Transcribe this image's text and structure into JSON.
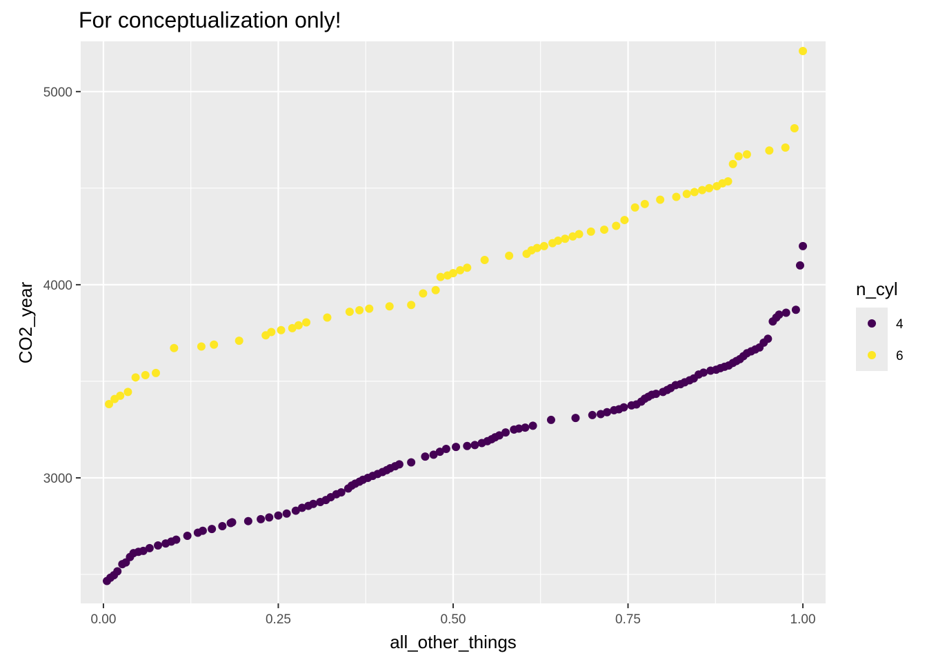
{
  "chart_data": {
    "type": "scatter",
    "title": "For conceptualization only!",
    "xlabel": "all_other_things",
    "ylabel": "CO2_year",
    "xlim": [
      -0.0325,
      1.0325
    ],
    "ylim": [
      2350,
      5260
    ],
    "x_ticks": [
      0.0,
      0.25,
      0.5,
      0.75,
      1.0
    ],
    "x_tick_labels": [
      "0.00",
      "0.25",
      "0.50",
      "0.75",
      "1.00"
    ],
    "y_ticks": [
      3000,
      4000,
      5000
    ],
    "y_tick_labels": [
      "3000",
      "4000",
      "5000"
    ],
    "grid": true,
    "legend": {
      "title": "n_cyl",
      "position": "right"
    },
    "series": [
      {
        "name": "4",
        "color": "#440154",
        "points": [
          [
            0.005,
            2466
          ],
          [
            0.01,
            2483
          ],
          [
            0.015,
            2496
          ],
          [
            0.02,
            2516
          ],
          [
            0.027,
            2553
          ],
          [
            0.032,
            2562
          ],
          [
            0.038,
            2590
          ],
          [
            0.043,
            2610
          ],
          [
            0.05,
            2617
          ],
          [
            0.057,
            2622
          ],
          [
            0.066,
            2636
          ],
          [
            0.078,
            2650
          ],
          [
            0.089,
            2660
          ],
          [
            0.097,
            2670
          ],
          [
            0.104,
            2680
          ],
          [
            0.12,
            2700
          ],
          [
            0.135,
            2716
          ],
          [
            0.142,
            2726
          ],
          [
            0.155,
            2735
          ],
          [
            0.17,
            2750
          ],
          [
            0.182,
            2766
          ],
          [
            0.184,
            2770
          ],
          [
            0.207,
            2776
          ],
          [
            0.225,
            2786
          ],
          [
            0.237,
            2795
          ],
          [
            0.25,
            2805
          ],
          [
            0.262,
            2815
          ],
          [
            0.275,
            2830
          ],
          [
            0.284,
            2845
          ],
          [
            0.293,
            2855
          ],
          [
            0.3,
            2865
          ],
          [
            0.31,
            2875
          ],
          [
            0.318,
            2885
          ],
          [
            0.325,
            2900
          ],
          [
            0.333,
            2915
          ],
          [
            0.34,
            2925
          ],
          [
            0.35,
            2945
          ],
          [
            0.355,
            2960
          ],
          [
            0.36,
            2970
          ],
          [
            0.366,
            2980
          ],
          [
            0.371,
            2990
          ],
          [
            0.378,
            3000
          ],
          [
            0.385,
            3010
          ],
          [
            0.392,
            3020
          ],
          [
            0.399,
            3030
          ],
          [
            0.405,
            3040
          ],
          [
            0.41,
            3050
          ],
          [
            0.417,
            3060
          ],
          [
            0.423,
            3070
          ],
          [
            0.44,
            3080
          ],
          [
            0.46,
            3110
          ],
          [
            0.472,
            3120
          ],
          [
            0.481,
            3135
          ],
          [
            0.49,
            3150
          ],
          [
            0.504,
            3160
          ],
          [
            0.52,
            3165
          ],
          [
            0.531,
            3170
          ],
          [
            0.541,
            3180
          ],
          [
            0.549,
            3190
          ],
          [
            0.555,
            3200
          ],
          [
            0.56,
            3210
          ],
          [
            0.566,
            3220
          ],
          [
            0.575,
            3235
          ],
          [
            0.587,
            3250
          ],
          [
            0.594,
            3255
          ],
          [
            0.603,
            3260
          ],
          [
            0.614,
            3270
          ],
          [
            0.64,
            3300
          ],
          [
            0.675,
            3310
          ],
          [
            0.699,
            3325
          ],
          [
            0.711,
            3330
          ],
          [
            0.72,
            3340
          ],
          [
            0.73,
            3350
          ],
          [
            0.737,
            3355
          ],
          [
            0.744,
            3365
          ],
          [
            0.755,
            3375
          ],
          [
            0.762,
            3380
          ],
          [
            0.769,
            3395
          ],
          [
            0.774,
            3410
          ],
          [
            0.779,
            3420
          ],
          [
            0.784,
            3430
          ],
          [
            0.79,
            3435
          ],
          [
            0.8,
            3445
          ],
          [
            0.806,
            3455
          ],
          [
            0.811,
            3465
          ],
          [
            0.818,
            3480
          ],
          [
            0.825,
            3485
          ],
          [
            0.831,
            3495
          ],
          [
            0.838,
            3505
          ],
          [
            0.844,
            3515
          ],
          [
            0.851,
            3535
          ],
          [
            0.858,
            3545
          ],
          [
            0.868,
            3555
          ],
          [
            0.876,
            3560
          ],
          [
            0.882,
            3568
          ],
          [
            0.888,
            3575
          ],
          [
            0.894,
            3582
          ],
          [
            0.9,
            3595
          ],
          [
            0.905,
            3605
          ],
          [
            0.91,
            3615
          ],
          [
            0.915,
            3630
          ],
          [
            0.92,
            3645
          ],
          [
            0.926,
            3655
          ],
          [
            0.932,
            3665
          ],
          [
            0.938,
            3675
          ],
          [
            0.944,
            3700
          ],
          [
            0.95,
            3720
          ],
          [
            0.957,
            3810
          ],
          [
            0.962,
            3830
          ],
          [
            0.966,
            3845
          ],
          [
            0.976,
            3855
          ],
          [
            0.99,
            3870
          ],
          [
            0.996,
            4100
          ],
          [
            1.0,
            4200
          ]
        ]
      },
      {
        "name": "6",
        "color": "#FDE725",
        "points": [
          [
            0.008,
            3382
          ],
          [
            0.016,
            3408
          ],
          [
            0.024,
            3425
          ],
          [
            0.035,
            3445
          ],
          [
            0.046,
            3520
          ],
          [
            0.06,
            3532
          ],
          [
            0.075,
            3543
          ],
          [
            0.101,
            3672
          ],
          [
            0.14,
            3680
          ],
          [
            0.158,
            3690
          ],
          [
            0.194,
            3710
          ],
          [
            0.232,
            3738
          ],
          [
            0.24,
            3755
          ],
          [
            0.254,
            3765
          ],
          [
            0.27,
            3775
          ],
          [
            0.279,
            3790
          ],
          [
            0.29,
            3805
          ],
          [
            0.32,
            3830
          ],
          [
            0.352,
            3860
          ],
          [
            0.366,
            3868
          ],
          [
            0.38,
            3876
          ],
          [
            0.409,
            3888
          ],
          [
            0.44,
            3895
          ],
          [
            0.457,
            3955
          ],
          [
            0.475,
            3972
          ],
          [
            0.482,
            4040
          ],
          [
            0.492,
            4048
          ],
          [
            0.5,
            4060
          ],
          [
            0.51,
            4075
          ],
          [
            0.52,
            4088
          ],
          [
            0.545,
            4128
          ],
          [
            0.58,
            4150
          ],
          [
            0.605,
            4160
          ],
          [
            0.612,
            4178
          ],
          [
            0.62,
            4190
          ],
          [
            0.63,
            4200
          ],
          [
            0.642,
            4215
          ],
          [
            0.65,
            4228
          ],
          [
            0.66,
            4238
          ],
          [
            0.671,
            4250
          ],
          [
            0.68,
            4262
          ],
          [
            0.697,
            4275
          ],
          [
            0.716,
            4285
          ],
          [
            0.733,
            4305
          ],
          [
            0.745,
            4335
          ],
          [
            0.76,
            4400
          ],
          [
            0.774,
            4418
          ],
          [
            0.796,
            4440
          ],
          [
            0.819,
            4455
          ],
          [
            0.834,
            4470
          ],
          [
            0.845,
            4480
          ],
          [
            0.856,
            4490
          ],
          [
            0.866,
            4500
          ],
          [
            0.877,
            4510
          ],
          [
            0.885,
            4525
          ],
          [
            0.893,
            4535
          ],
          [
            0.9,
            4625
          ],
          [
            0.908,
            4665
          ],
          [
            0.92,
            4675
          ],
          [
            0.952,
            4695
          ],
          [
            0.975,
            4710
          ],
          [
            0.988,
            4810
          ],
          [
            1.0,
            5210
          ]
        ]
      }
    ]
  }
}
